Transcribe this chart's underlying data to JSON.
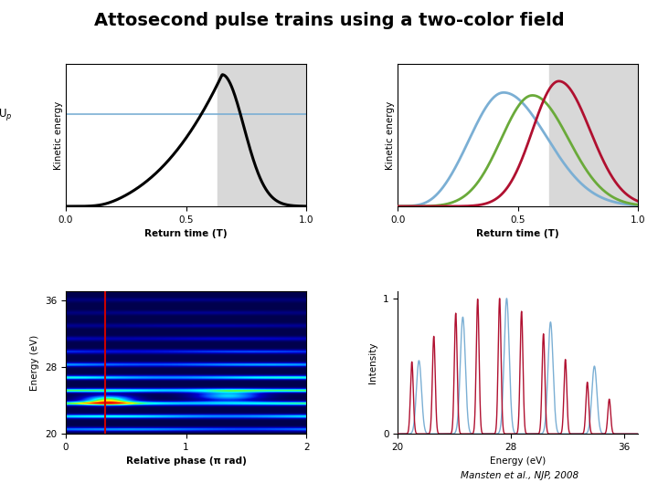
{
  "title": "Attosecond pulse trains using a two-color field",
  "title_fontsize": 14,
  "bg_color": "#ffffff",
  "subplot_bg": "#d8d8d8",
  "shade_start": 0.63,
  "shade_end": 1.0,
  "top_left": {
    "xlabel": "Return time (T)",
    "ylabel": "Kinetic energy",
    "xticks": [
      0,
      0.5,
      1
    ],
    "line_color": "#000000",
    "hline_color": "#7bafd4",
    "linewidth": 2.2,
    "hline_y": 0.7
  },
  "top_right": {
    "xlabel": "Return time (T)",
    "ylabel": "Kinetic energy",
    "xticks": [
      0,
      0.5,
      1
    ],
    "colors": [
      "#7bafd4",
      "#6aaa3a",
      "#b01030"
    ],
    "linewidth": 2.0
  },
  "bot_left": {
    "xlabel": "Relative phase (π rad)",
    "ylabel": "Energy (eV)",
    "xticks": [
      0,
      1,
      2
    ],
    "yticks": [
      20,
      28,
      36
    ],
    "xlim": [
      0,
      2
    ],
    "ylim": [
      20,
      37
    ],
    "vline_x": 0.33,
    "vline_color": "#cc0000"
  },
  "bot_right": {
    "xlabel": "Energy (eV)",
    "ylabel": "Intensity",
    "xticks": [
      20,
      28,
      36
    ],
    "yticks": [
      0,
      1
    ],
    "xlim": [
      20,
      37
    ],
    "ylim": [
      0,
      1.05
    ],
    "colors": [
      "#7bafd4",
      "#b01030"
    ],
    "linewidth": 1.0
  },
  "citation": "Mansten et al., NJP, 2008"
}
